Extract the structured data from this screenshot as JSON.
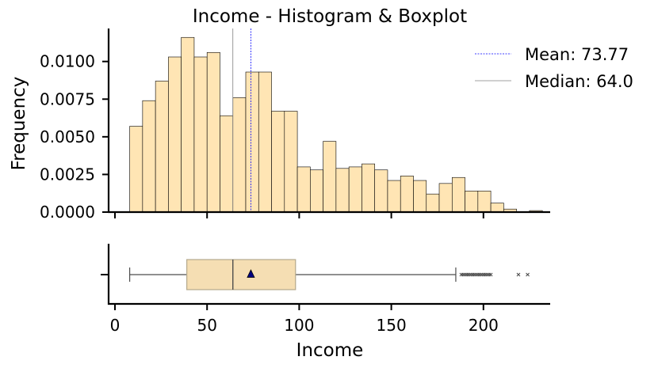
{
  "chart_data": [
    {
      "type": "histogram",
      "title": "Income - Histogram & Boxplot",
      "ylabel": "Frequency",
      "xlim": [
        -3,
        237
      ],
      "ylim": [
        0,
        0.0122
      ],
      "y_ticks": [
        "0.0000",
        "0.0025",
        "0.0050",
        "0.0075",
        "0.0100"
      ],
      "y_tick_values": [
        0,
        0.0025,
        0.005,
        0.0075,
        0.01
      ],
      "x_tick_values": [
        0,
        50,
        100,
        150,
        200
      ],
      "bin_start": 8,
      "bin_width": 7,
      "values": [
        0.0057,
        0.0074,
        0.0087,
        0.0103,
        0.0116,
        0.0103,
        0.0106,
        0.0064,
        0.0076,
        0.0093,
        0.0093,
        0.0067,
        0.0067,
        0.003,
        0.0028,
        0.0047,
        0.0029,
        0.003,
        0.0032,
        0.0028,
        0.0021,
        0.0024,
        0.0021,
        0.0012,
        0.0019,
        0.0023,
        0.0014,
        0.0014,
        0.0006,
        0.0002,
        0.0,
        0.0001
      ],
      "bar_color": "#ffe5b4",
      "mean": 73.77,
      "median": 64.0,
      "mean_color": "#0000ff",
      "median_color": "#808080",
      "legend": [
        "Mean: 73.77",
        "Median: 64.0"
      ],
      "legend_position": "top-right",
      "grid": false
    },
    {
      "type": "boxplot",
      "xlabel": "Income",
      "x_ticks": [
        "0",
        "50",
        "100",
        "150",
        "200"
      ],
      "x_tick_values": [
        0,
        50,
        100,
        150,
        200
      ],
      "xlim": [
        -3,
        237
      ],
      "whisker_low": 8,
      "q1": 39,
      "median": 64,
      "q3": 98,
      "whisker_high": 185,
      "mean": 73.77,
      "outliers": [
        188,
        189,
        190,
        191,
        192,
        193,
        194,
        195,
        196,
        197,
        198,
        199,
        200,
        201,
        202,
        203,
        204,
        219,
        224
      ],
      "box_color": "#f5deb3",
      "mean_marker_color": "#000080"
    }
  ]
}
